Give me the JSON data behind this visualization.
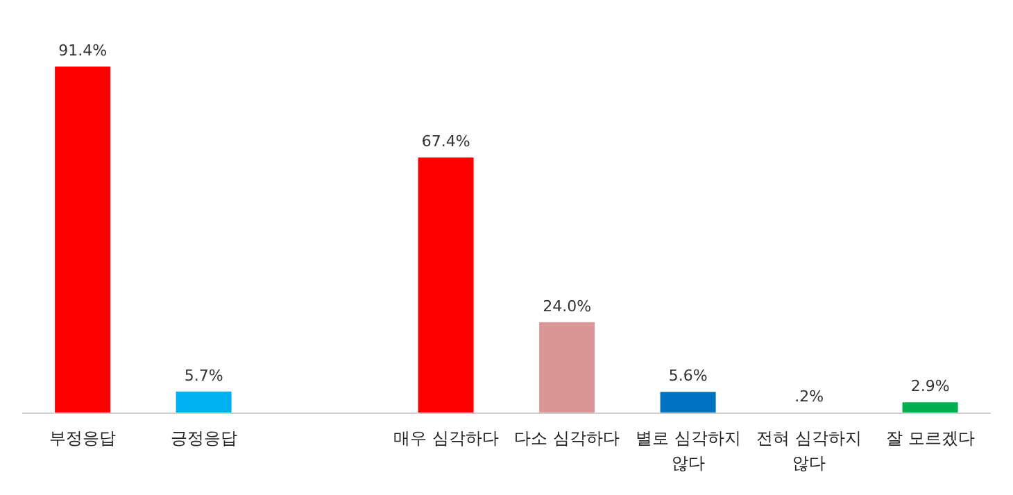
{
  "chart_data": {
    "type": "bar",
    "categories": [
      "부정응답",
      "긍정응답",
      null,
      "매우 심각하다",
      "다소 심각하다",
      "별로 심각하지 않다",
      "전혀 심각하지 않다",
      "잘 모르겠다"
    ],
    "values": [
      91.4,
      5.7,
      null,
      67.4,
      24.0,
      5.6,
      0.2,
      2.9
    ],
    "colors": [
      "#ff0000",
      "#00b0f0",
      "#ffffff",
      "#ff0000",
      "#d99694",
      "#0070c0",
      "#9bbb59",
      "#00b050"
    ],
    "value_labels": [
      "91.4%",
      "5.7%",
      null,
      "67.4%",
      "24.0%",
      "5.6%",
      ".2%",
      "2.9%"
    ],
    "grid": false,
    "legend": false
  }
}
